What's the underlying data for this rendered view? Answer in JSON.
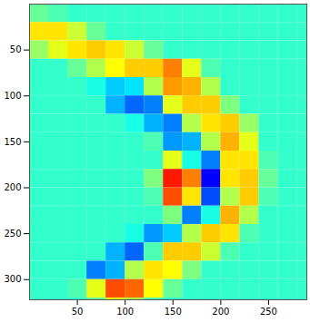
{
  "chart_data": {
    "type": "heatmap",
    "x": [
      10,
      30,
      50,
      70,
      90,
      110,
      130,
      150,
      170,
      190,
      210,
      230,
      250,
      270,
      290
    ],
    "y": [
      10,
      30,
      50,
      70,
      90,
      110,
      130,
      150,
      170,
      190,
      210,
      230,
      250,
      270,
      290,
      310,
      330
    ],
    "values": [
      [
        -0.05,
        -0.1,
        -0.15,
        -0.15,
        -0.15,
        -0.15,
        -0.15,
        -0.15,
        -0.15,
        -0.15,
        -0.15,
        -0.15,
        -0.15,
        -0.15,
        -0.15
      ],
      [
        0.3,
        0.3,
        0.15,
        -0.05,
        -0.15,
        -0.15,
        -0.15,
        -0.15,
        -0.15,
        -0.15,
        -0.15,
        -0.15,
        -0.15,
        -0.15,
        -0.15
      ],
      [
        0.05,
        0.2,
        0.3,
        0.35,
        0.3,
        0.15,
        -0.05,
        -0.15,
        -0.15,
        -0.15,
        -0.15,
        -0.15,
        -0.15,
        -0.15,
        -0.15
      ],
      [
        -0.15,
        -0.15,
        -0.05,
        0.1,
        0.25,
        0.35,
        0.35,
        0.5,
        0.2,
        -0.1,
        -0.15,
        -0.15,
        -0.15,
        -0.15,
        -0.15
      ],
      [
        -0.15,
        -0.15,
        -0.15,
        -0.2,
        -0.35,
        -0.3,
        0.1,
        0.45,
        0.4,
        0.1,
        -0.15,
        -0.15,
        -0.15,
        -0.15,
        -0.15
      ],
      [
        -0.15,
        -0.15,
        -0.15,
        -0.15,
        -0.4,
        -0.55,
        -0.5,
        0.2,
        0.35,
        0.35,
        0.0,
        -0.15,
        -0.15,
        -0.15,
        -0.15
      ],
      [
        -0.15,
        -0.15,
        -0.15,
        -0.15,
        -0.15,
        -0.2,
        -0.4,
        -0.5,
        0.1,
        0.3,
        0.35,
        0.05,
        -0.15,
        -0.15,
        -0.15
      ],
      [
        -0.15,
        -0.15,
        -0.15,
        -0.15,
        -0.15,
        -0.15,
        -0.1,
        -0.45,
        -0.4,
        0.1,
        0.4,
        0.2,
        -0.15,
        -0.15,
        -0.15
      ],
      [
        -0.15,
        -0.15,
        -0.15,
        -0.15,
        -0.15,
        -0.15,
        -0.15,
        0.2,
        -0.2,
        -0.5,
        0.3,
        0.3,
        -0.1,
        -0.15,
        -0.15
      ],
      [
        -0.15,
        -0.15,
        -0.15,
        -0.15,
        -0.15,
        -0.15,
        0.0,
        0.7,
        0.5,
        -0.75,
        0.3,
        0.35,
        -0.05,
        -0.15,
        -0.15
      ],
      [
        -0.15,
        -0.15,
        -0.15,
        -0.15,
        -0.15,
        -0.15,
        -0.1,
        0.6,
        0.3,
        -0.6,
        0.1,
        0.35,
        -0.1,
        -0.15,
        -0.15
      ],
      [
        -0.15,
        -0.15,
        -0.15,
        -0.15,
        -0.15,
        -0.15,
        -0.15,
        0.0,
        -0.5,
        -0.2,
        0.4,
        0.1,
        -0.15,
        -0.15,
        -0.15
      ],
      [
        -0.15,
        -0.15,
        -0.15,
        -0.15,
        -0.15,
        -0.2,
        -0.45,
        -0.35,
        0.1,
        0.35,
        0.3,
        -0.1,
        -0.15,
        -0.15,
        -0.15
      ],
      [
        -0.15,
        -0.15,
        -0.15,
        -0.15,
        -0.4,
        -0.55,
        -0.1,
        0.35,
        0.35,
        0.15,
        -0.1,
        -0.15,
        -0.15,
        -0.15,
        -0.15
      ],
      [
        -0.15,
        -0.15,
        -0.15,
        -0.5,
        -0.4,
        0.1,
        0.3,
        0.25,
        0.0,
        -0.15,
        -0.15,
        -0.15,
        -0.15,
        -0.15,
        -0.15
      ],
      [
        -0.15,
        -0.15,
        -0.1,
        0.2,
        0.6,
        0.55,
        0.25,
        -0.05,
        -0.15,
        -0.15,
        -0.15,
        -0.15,
        -0.15,
        -0.15,
        -0.15
      ],
      [
        -0.15,
        -0.15,
        -0.15,
        -0.05,
        0.2,
        0.1,
        -0.1,
        -0.15,
        -0.15,
        -0.15,
        -0.15,
        -0.15,
        -0.15,
        -0.15,
        -0.15
      ]
    ],
    "clim": [
      -1,
      1
    ],
    "xlim": [
      0,
      290
    ],
    "ylim": [
      322,
      0
    ],
    "xticks": [
      50,
      100,
      150,
      200,
      250
    ],
    "yticks": [
      50,
      100,
      150,
      200,
      250,
      300
    ]
  }
}
